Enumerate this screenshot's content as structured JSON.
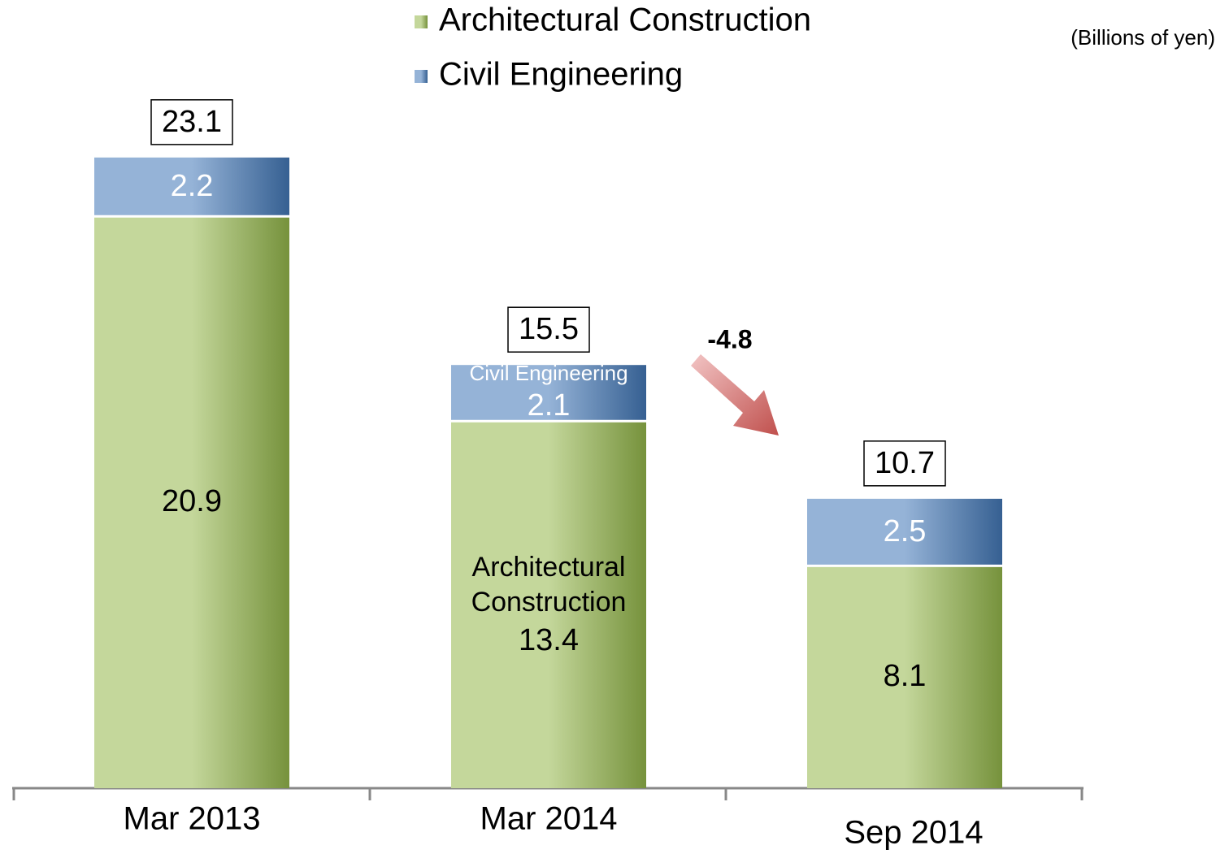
{
  "chart_data": {
    "type": "stacked_bar",
    "unit": "(Billions of yen)",
    "categories": [
      "Mar 2013",
      "Mar 2014",
      "Sep 2014"
    ],
    "series": [
      {
        "name": "Architectural Construction",
        "color": "#9bbb59",
        "values": [
          20.9,
          13.4,
          8.1
        ]
      },
      {
        "name": "Civil Engineering",
        "color": "#4f81bd",
        "values": [
          2.2,
          2.1,
          2.5
        ]
      }
    ],
    "totals": [
      23.1,
      15.5,
      10.7
    ],
    "annotation": "-4.8"
  }
}
